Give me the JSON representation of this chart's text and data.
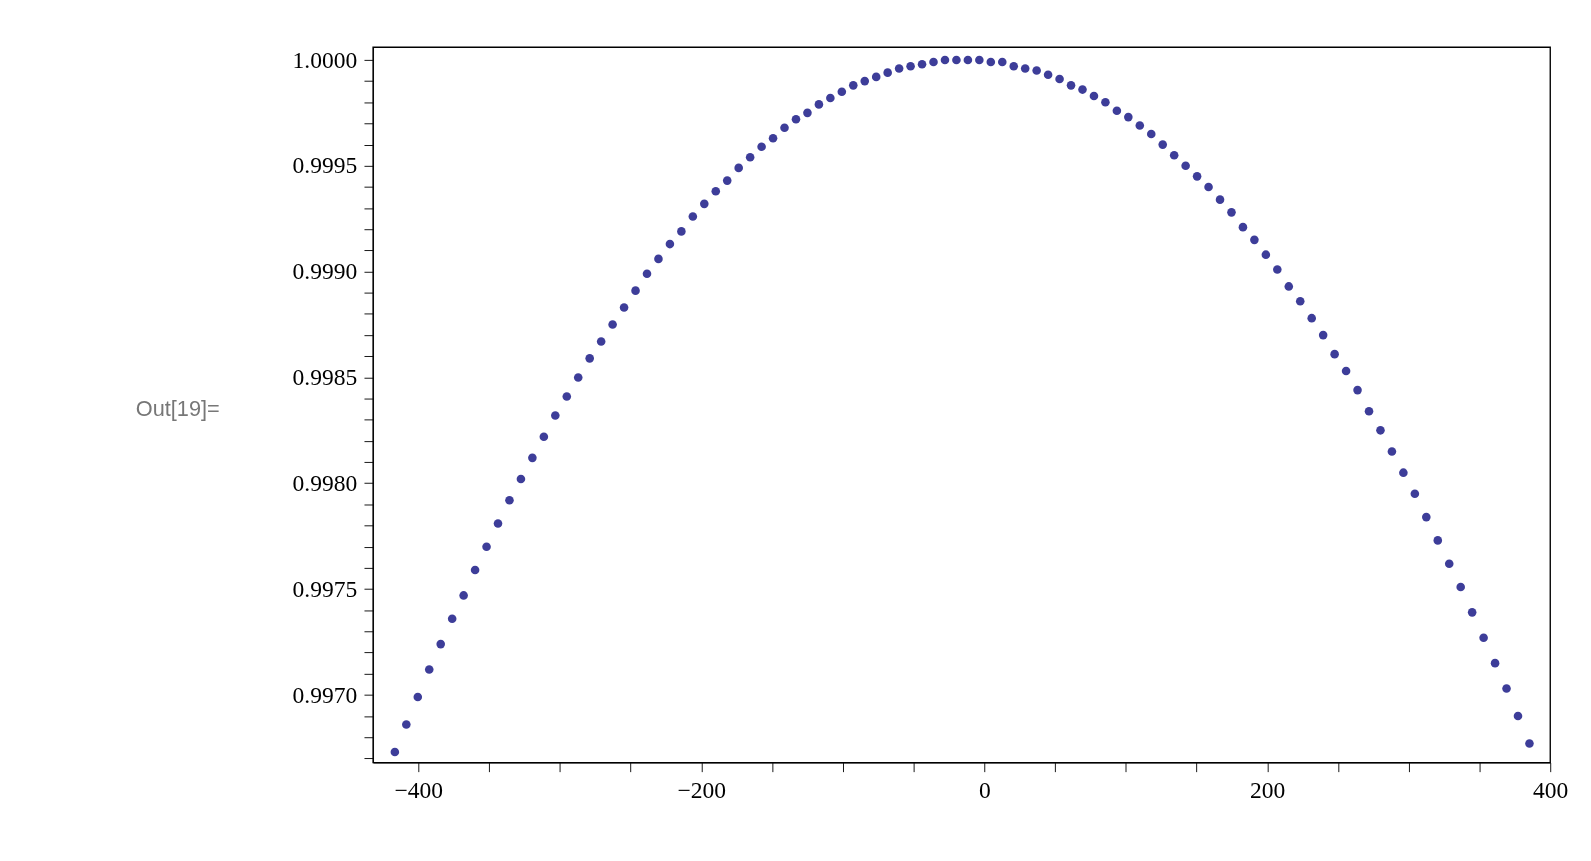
{
  "chart_data": {
    "type": "scatter",
    "marker": "circle",
    "grid": false,
    "legend": false,
    "annotations": [
      "Out[19]="
    ],
    "xlim": [
      -432,
      400
    ],
    "ylim": [
      0.99668,
      1.00006
    ],
    "xticks": [
      {
        "value": -400,
        "label": "−400"
      },
      {
        "value": -350,
        "label": null
      },
      {
        "value": -300,
        "label": null
      },
      {
        "value": -250,
        "label": null
      },
      {
        "value": -200,
        "label": "−200"
      },
      {
        "value": -150,
        "label": null
      },
      {
        "value": -100,
        "label": null
      },
      {
        "value": -50,
        "label": null
      },
      0,
      {
        "value": 50,
        "label": null
      },
      {
        "value": 100,
        "label": null
      },
      {
        "value": 150,
        "label": null
      },
      200,
      {
        "value": 250,
        "label": null
      },
      {
        "value": 300,
        "label": null
      },
      {
        "value": 350,
        "label": null
      },
      400
    ],
    "yticks": [
      {
        "value": 0.9967,
        "label": null
      },
      {
        "value": 0.9968,
        "label": null
      },
      {
        "value": 0.9969,
        "label": null
      },
      {
        "value": 0.997,
        "label": "0.9970"
      },
      {
        "value": 0.9971,
        "label": null
      },
      {
        "value": 0.9972,
        "label": null
      },
      {
        "value": 0.9973,
        "label": null
      },
      {
        "value": 0.9974,
        "label": null
      },
      {
        "value": 0.9975,
        "label": "0.9975"
      },
      {
        "value": 0.9976,
        "label": null
      },
      {
        "value": 0.9977,
        "label": null
      },
      {
        "value": 0.9978,
        "label": null
      },
      {
        "value": 0.9979,
        "label": null
      },
      {
        "value": 0.998,
        "label": "0.9980"
      },
      {
        "value": 0.9981,
        "label": null
      },
      {
        "value": 0.9982,
        "label": null
      },
      {
        "value": 0.9983,
        "label": null
      },
      {
        "value": 0.9984,
        "label": null
      },
      {
        "value": 0.9985,
        "label": "0.9985"
      },
      {
        "value": 0.9986,
        "label": null
      },
      {
        "value": 0.9987,
        "label": null
      },
      {
        "value": 0.9988,
        "label": null
      },
      {
        "value": 0.9989,
        "label": null
      },
      {
        "value": 0.999,
        "label": "0.9990"
      },
      {
        "value": 0.9991,
        "label": null
      },
      {
        "value": 0.9992,
        "label": null
      },
      {
        "value": 0.9993,
        "label": null
      },
      {
        "value": 0.9994,
        "label": null
      },
      {
        "value": 0.9995,
        "label": "0.9995"
      },
      {
        "value": 0.9996,
        "label": null
      },
      {
        "value": 0.9997,
        "label": null
      },
      {
        "value": 0.9998,
        "label": null
      },
      {
        "value": 0.9999,
        "label": null
      },
      {
        "value": 1.0,
        "label": "1.0000"
      }
    ],
    "series": [
      {
        "color": "#3d3d99",
        "x": [
          -416.6,
          -408.5,
          -400.4,
          -392.3,
          -384.2,
          -376.1,
          -368.0,
          -359.9,
          -351.8,
          -343.7,
          -335.6,
          -327.5,
          -319.4,
          -311.3,
          -303.2,
          -295.1,
          -287.0,
          -278.9,
          -270.8,
          -262.7,
          -254.6,
          -246.5,
          -238.4,
          -230.3,
          -222.2,
          -214.1,
          -206.0,
          -197.9,
          -189.8,
          -181.7,
          -173.6,
          -165.5,
          -157.4,
          -149.3,
          -141.2,
          -133.1,
          -125.0,
          -116.9,
          -108.8,
          -100.7,
          -92.6,
          -84.5,
          -76.4,
          -68.3,
          -60.2,
          -52.1,
          -44.0,
          -35.9,
          -27.8,
          -19.7,
          -11.6,
          -3.5,
          4.6,
          12.7,
          20.8,
          28.9,
          37.0,
          45.1,
          53.2,
          61.3,
          69.4,
          77.5,
          85.6,
          93.7,
          101.8,
          109.9,
          118.0,
          126.1,
          134.2,
          142.3,
          150.4,
          158.5,
          166.6,
          174.7,
          182.8,
          190.9,
          199.0,
          207.1,
          215.2,
          223.3,
          231.4,
          239.5,
          247.6,
          255.7,
          263.8,
          271.9,
          280.0,
          288.1,
          296.2,
          304.3,
          312.4,
          320.5,
          328.6,
          336.7,
          344.8,
          352.9,
          361.0,
          369.1,
          377.2,
          385.3
        ],
        "values": [
          0.99673,
          0.99686,
          0.99699,
          0.99712,
          0.99724,
          0.99736,
          0.99747,
          0.99759,
          0.9977,
          0.99781,
          0.99792,
          0.99802,
          0.99812,
          0.99822,
          0.99832,
          0.99841,
          0.9985,
          0.99859,
          0.99867,
          0.99875,
          0.99883,
          0.99891,
          0.99899,
          0.99906,
          0.99913,
          0.99919,
          0.99926,
          0.99932,
          0.99938,
          0.99943,
          0.99949,
          0.99954,
          0.99959,
          0.99963,
          0.99968,
          0.99972,
          0.99975,
          0.99979,
          0.99982,
          0.99985,
          0.99988,
          0.9999,
          0.99992,
          0.99994,
          0.99996,
          0.99997,
          0.99998,
          0.99999,
          1.0,
          1.0,
          1.0,
          1.0,
          0.99999,
          0.99999,
          0.99997,
          0.99996,
          0.99995,
          0.99993,
          0.99991,
          0.99988,
          0.99986,
          0.99983,
          0.9998,
          0.99976,
          0.99973,
          0.99969,
          0.99965,
          0.9996,
          0.99955,
          0.9995,
          0.99945,
          0.9994,
          0.99934,
          0.99928,
          0.99921,
          0.99915,
          0.99908,
          0.99901,
          0.99893,
          0.99886,
          0.99878,
          0.9987,
          0.99861,
          0.99853,
          0.99844,
          0.99834,
          0.99825,
          0.99815,
          0.99805,
          0.99795,
          0.99784,
          0.99773,
          0.99762,
          0.99751,
          0.99739,
          0.99727,
          0.99715,
          0.99703,
          0.9969,
          0.99677
        ]
      }
    ]
  }
}
